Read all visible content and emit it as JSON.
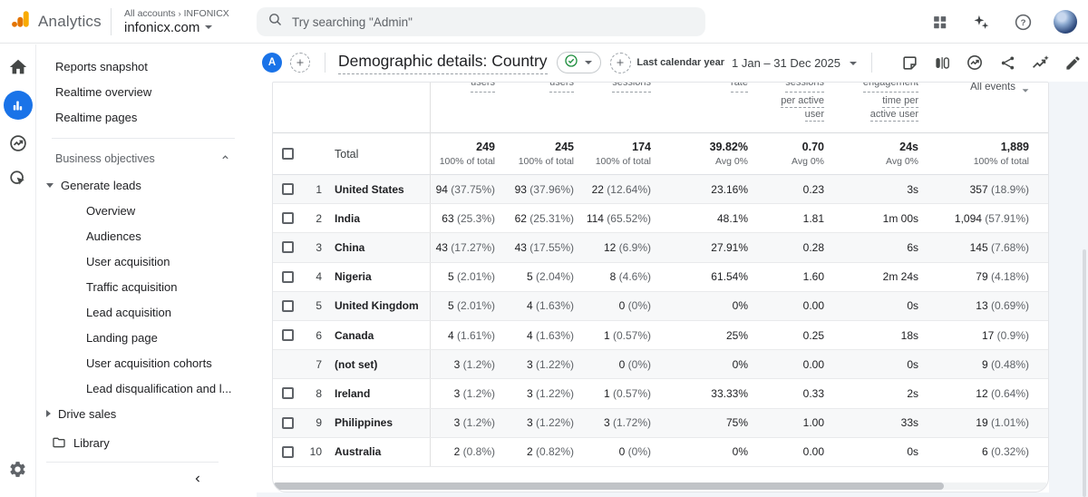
{
  "topbar": {
    "product": "Analytics",
    "breadcrumb_accounts": "All accounts",
    "breadcrumb_org": "INFONICX",
    "property_name": "infonicx.com",
    "search_placeholder": "Try searching \"Admin\""
  },
  "rail": {
    "items": [
      {
        "name": "home",
        "active": false
      },
      {
        "name": "reports",
        "active": true
      },
      {
        "name": "advertising",
        "active": false
      },
      {
        "name": "explore",
        "active": false
      },
      {
        "name": "admin-settings",
        "active": false
      }
    ]
  },
  "sidebar": {
    "items": [
      {
        "type": "item",
        "label": "Reports snapshot"
      },
      {
        "type": "item",
        "label": "Realtime overview"
      },
      {
        "type": "item",
        "label": "Realtime pages"
      },
      {
        "type": "divider"
      },
      {
        "type": "section",
        "label": "Business objectives"
      },
      {
        "type": "group",
        "label": "Generate leads",
        "state": "expanded"
      },
      {
        "type": "subitem",
        "label": "Overview"
      },
      {
        "type": "subitem",
        "label": "Audiences"
      },
      {
        "type": "subitem",
        "label": "User acquisition"
      },
      {
        "type": "subitem",
        "label": "Traffic acquisition"
      },
      {
        "type": "subitem",
        "label": "Lead acquisition"
      },
      {
        "type": "subitem",
        "label": "Landing page"
      },
      {
        "type": "subitem",
        "label": "User acquisition cohorts"
      },
      {
        "type": "subitem",
        "label": "Lead disqualification and l..."
      },
      {
        "type": "group",
        "label": "Drive sales",
        "state": "collapsed"
      },
      {
        "type": "library",
        "label": "Library"
      }
    ]
  },
  "report_header": {
    "comparison_letter": "A",
    "title": "Demographic details: Country",
    "date_range_label": "Last calendar year",
    "date_range_value": "1 Jan – 31 Dec 2025"
  },
  "table": {
    "column_header_fragments": [
      {
        "column": "active-users",
        "lines": [
          "users"
        ]
      },
      {
        "column": "new-users",
        "lines": [
          "users"
        ]
      },
      {
        "column": "engaged-sessions",
        "lines": [
          "sessions"
        ]
      },
      {
        "column": "engagement-rate",
        "lines": [
          "rate"
        ]
      },
      {
        "column": "engaged-sessions-per-active-user",
        "lines": [
          "sessions",
          "per active",
          "user"
        ]
      },
      {
        "column": "engagement-time-per-active-user",
        "lines": [
          "engagement",
          "time per",
          "active user"
        ]
      },
      {
        "column": "event-count",
        "lines": [
          "All events"
        ],
        "dropdown": true
      }
    ],
    "total": {
      "label": "Total",
      "cells": [
        {
          "value": "249",
          "sub": "100% of total"
        },
        {
          "value": "245",
          "sub": "100% of total"
        },
        {
          "value": "174",
          "sub": "100% of total"
        },
        {
          "value": "39.82%",
          "sub": "Avg 0%"
        },
        {
          "value": "0.70",
          "sub": "Avg 0%"
        },
        {
          "value": "24s",
          "sub": "Avg 0%"
        },
        {
          "value": "1,889",
          "sub": "100% of total"
        }
      ]
    },
    "rows": [
      {
        "n": "1",
        "country": "United States",
        "checkbox": true,
        "cells": [
          "94 (37.75%)",
          "93 (37.96%)",
          "22 (12.64%)",
          "23.16%",
          "0.23",
          "3s",
          "357 (18.9%)"
        ]
      },
      {
        "n": "2",
        "country": "India",
        "checkbox": true,
        "cells": [
          "63 (25.3%)",
          "62 (25.31%)",
          "114 (65.52%)",
          "48.1%",
          "1.81",
          "1m 00s",
          "1,094 (57.91%)"
        ]
      },
      {
        "n": "3",
        "country": "China",
        "checkbox": true,
        "cells": [
          "43 (17.27%)",
          "43 (17.55%)",
          "12 (6.9%)",
          "27.91%",
          "0.28",
          "6s",
          "145 (7.68%)"
        ]
      },
      {
        "n": "4",
        "country": "Nigeria",
        "checkbox": true,
        "cells": [
          "5 (2.01%)",
          "5 (2.04%)",
          "8 (4.6%)",
          "61.54%",
          "1.60",
          "2m 24s",
          "79 (4.18%)"
        ]
      },
      {
        "n": "5",
        "country": "United Kingdom",
        "checkbox": true,
        "cells": [
          "5 (2.01%)",
          "4 (1.63%)",
          "0 (0%)",
          "0%",
          "0.00",
          "0s",
          "13 (0.69%)"
        ]
      },
      {
        "n": "6",
        "country": "Canada",
        "checkbox": true,
        "cells": [
          "4 (1.61%)",
          "4 (1.63%)",
          "1 (0.57%)",
          "25%",
          "0.25",
          "18s",
          "17 (0.9%)"
        ]
      },
      {
        "n": "7",
        "country": "(not set)",
        "checkbox": false,
        "cells": [
          "3 (1.2%)",
          "3 (1.22%)",
          "0 (0%)",
          "0%",
          "0.00",
          "0s",
          "9 (0.48%)"
        ]
      },
      {
        "n": "8",
        "country": "Ireland",
        "checkbox": true,
        "cells": [
          "3 (1.2%)",
          "3 (1.22%)",
          "1 (0.57%)",
          "33.33%",
          "0.33",
          "2s",
          "12 (0.64%)"
        ]
      },
      {
        "n": "9",
        "country": "Philippines",
        "checkbox": true,
        "cells": [
          "3 (1.2%)",
          "3 (1.22%)",
          "3 (1.72%)",
          "75%",
          "1.00",
          "33s",
          "19 (1.01%)"
        ]
      },
      {
        "n": "10",
        "country": "Australia",
        "checkbox": true,
        "cells": [
          "2 (0.8%)",
          "2 (0.82%)",
          "0 (0%)",
          "0%",
          "0.00",
          "0s",
          "6 (0.32%)"
        ]
      }
    ]
  },
  "colors": {
    "accent_blue": "#1a73e8",
    "logo_amber": "#f9ab00",
    "logo_orange": "#e37400",
    "status_green": "#1e8e3e",
    "icon_gray": "#5f6368",
    "zebra_row": "#f7f8f9",
    "page_tint": "#f2f5f9"
  }
}
